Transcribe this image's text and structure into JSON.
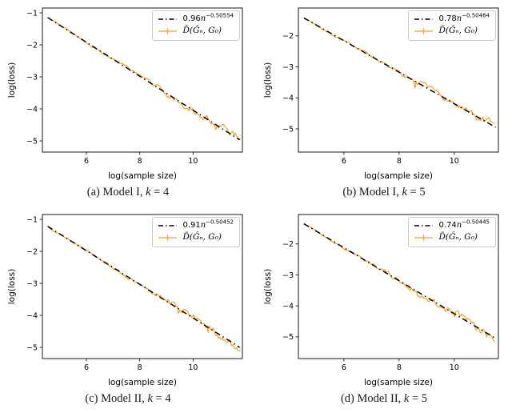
{
  "chart_data": [
    {
      "id": "a",
      "type": "line",
      "caption": {
        "tag": "(a)",
        "model": "Model I,",
        "k_var": "k",
        "k_eq": "= 4"
      },
      "legend": {
        "fit_coef": "0.96",
        "fit_var": "n",
        "fit_exp": "−0.50554",
        "series_label": "D̃(Ĝₙ, G₀)"
      },
      "xlabel": "log(sample size)",
      "ylabel": "log(loss)",
      "xlim": [
        4.35,
        11.85
      ],
      "ylim": [
        -5.35,
        -0.85
      ],
      "x_ticks": [
        6,
        8,
        10
      ],
      "y_ticks": [
        -1,
        -2,
        -3,
        -4,
        -5
      ],
      "fit_line": {
        "color": "#000000",
        "style": "dashdot",
        "x": [
          4.55,
          11.75
        ],
        "y": [
          -1.15,
          -4.97
        ]
      },
      "series": {
        "color": "#ff9c1b",
        "x_start": 4.55,
        "x_end": 11.78,
        "n_points": 150,
        "seed": 3,
        "noise_start": 0.02,
        "noise_end": 0.15,
        "wobble": 0.06,
        "wfreq": 2.3,
        "wphase": 0.15
      }
    },
    {
      "id": "b",
      "type": "line",
      "caption": {
        "tag": "(b)",
        "model": "Model I,",
        "k_var": "k",
        "k_eq": "= 5"
      },
      "legend": {
        "fit_coef": "0.78",
        "fit_var": "n",
        "fit_exp": "−0.50464",
        "series_label": "D̃(Ĝₙ, G₀)"
      },
      "xlabel": "log(sample size)",
      "ylabel": "log(loss)",
      "xlim": [
        4.35,
        11.6
      ],
      "ylim": [
        -5.75,
        -1.1
      ],
      "x_ticks": [
        6,
        8,
        10
      ],
      "y_ticks": [
        -2,
        -3,
        -4,
        -5
      ],
      "fit_line": {
        "color": "#000000",
        "style": "dashdot",
        "x": [
          4.55,
          11.5
        ],
        "y": [
          -1.42,
          -4.95
        ]
      },
      "series": {
        "color": "#ff9c1b",
        "x_start": 4.55,
        "x_end": 11.45,
        "n_points": 150,
        "seed": 7,
        "noise_start": 0.022,
        "noise_end": 0.18,
        "wobble": 0.06,
        "wfreq": 2.6,
        "wphase": 0.45
      }
    },
    {
      "id": "c",
      "type": "line",
      "caption": {
        "tag": "(c)",
        "model": "Model II,",
        "k_var": "k",
        "k_eq": "= 4"
      },
      "legend": {
        "fit_coef": "0.91",
        "fit_var": "n",
        "fit_exp": "−0.50452",
        "series_label": "D̃(Ĝₙ, G₀)"
      },
      "xlabel": "log(sample size)",
      "ylabel": "log(loss)",
      "xlim": [
        4.35,
        11.85
      ],
      "ylim": [
        -5.35,
        -0.85
      ],
      "x_ticks": [
        6,
        8,
        10
      ],
      "y_ticks": [
        -1,
        -2,
        -3,
        -4,
        -5
      ],
      "fit_line": {
        "color": "#000000",
        "style": "dashdot",
        "x": [
          4.55,
          11.75
        ],
        "y": [
          -1.22,
          -5.0
        ]
      },
      "series": {
        "color": "#ff9c1b",
        "x_start": 4.55,
        "x_end": 11.78,
        "n_points": 150,
        "seed": 13,
        "noise_start": 0.02,
        "noise_end": 0.16,
        "wobble": 0.055,
        "wfreq": 2.1,
        "wphase": 0.8
      }
    },
    {
      "id": "d",
      "type": "line",
      "caption": {
        "tag": "(d)",
        "model": "Model II,",
        "k_var": "k",
        "k_eq": "= 5"
      },
      "legend": {
        "fit_coef": "0.74",
        "fit_var": "n",
        "fit_exp": "−0.50445",
        "series_label": "D̃(Ĝₙ, G₀)"
      },
      "xlabel": "log(sample size)",
      "ylabel": "log(loss)",
      "xlim": [
        4.35,
        11.6
      ],
      "ylim": [
        -5.7,
        -1.05
      ],
      "x_ticks": [
        6,
        8,
        10
      ],
      "y_ticks": [
        -2,
        -3,
        -4,
        -5
      ],
      "fit_line": {
        "color": "#000000",
        "style": "dashdot",
        "x": [
          4.55,
          11.5
        ],
        "y": [
          -1.35,
          -5.05
        ]
      },
      "series": {
        "color": "#ff9c1b",
        "x_start": 4.55,
        "x_end": 11.45,
        "n_points": 150,
        "seed": 21,
        "noise_start": 0.022,
        "noise_end": 0.2,
        "wobble": 0.06,
        "wfreq": 2.4,
        "wphase": 0.3
      }
    }
  ]
}
